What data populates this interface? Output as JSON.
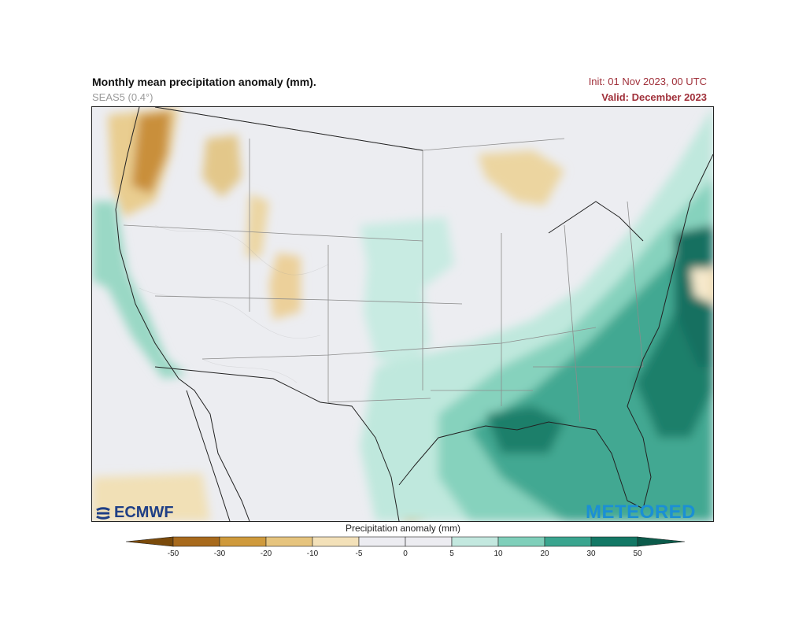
{
  "header": {
    "title": "Monthly mean precipitation anomaly (mm).",
    "model": "SEAS5 (0.4°)",
    "init": "Init: 01 Nov 2023, 00 UTC",
    "valid": "Valid: December 2023"
  },
  "logos": {
    "ecmwf": "ECMWF",
    "meteored": "METEORED"
  },
  "colorbar": {
    "title": "Precipitation anomaly (mm)",
    "ticks": [
      "-50",
      "-30",
      "-20",
      "-10",
      "-5",
      "0",
      "5",
      "10",
      "20",
      "30",
      "50"
    ],
    "colors": [
      "#7a4a0a",
      "#a86a1c",
      "#cf9a3c",
      "#e6c47e",
      "#f3e1b9",
      "#ececf1",
      "#ececf1",
      "#c3e8df",
      "#7fcfba",
      "#3aa58f",
      "#137865",
      "#0b5a4a"
    ]
  }
}
